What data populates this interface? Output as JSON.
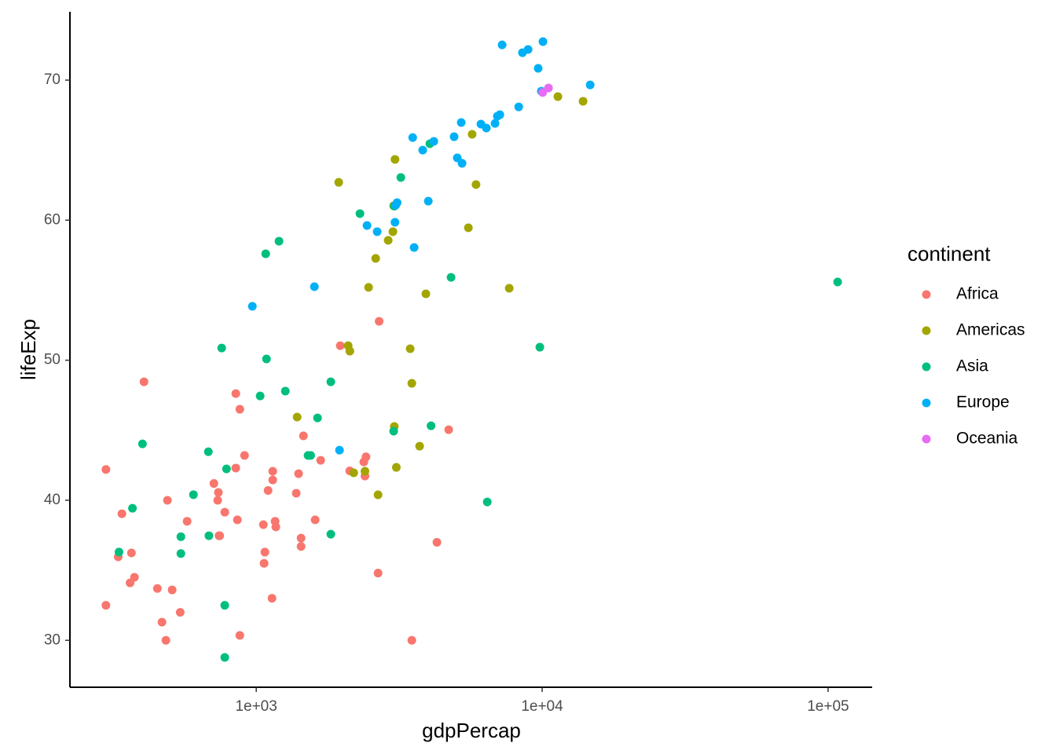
{
  "chart_data": {
    "type": "scatter",
    "x_label": "gdpPercap",
    "y_label": "lifeExp",
    "legend_title": "continent",
    "xlog": true,
    "xlim": [
      223,
      142600
    ],
    "ylim": [
      26.65,
      74.88
    ],
    "xticks": [
      {
        "value": 1000,
        "label": "1e+03"
      },
      {
        "value": 10000,
        "label": "1e+04"
      },
      {
        "value": 100000,
        "label": "1e+05"
      }
    ],
    "yticks": [
      30,
      40,
      50,
      60,
      70
    ],
    "series": [
      {
        "name": "Africa",
        "color": "#F8766D",
        "x": [
          298,
          298,
          329,
          339,
          366,
          362,
          375,
          405,
          451,
          468,
          483,
          489,
          508,
          542,
          573,
          711,
          733,
          737,
          741,
          745,
          776,
          848,
          848,
          859,
          876,
          876,
          910,
          1059,
          1072,
          1065,
          1100,
          1135,
          1142,
          1142,
          1164,
          1171,
          1380,
          1406,
          1435,
          1435,
          1462,
          1607,
          1680,
          1967,
          2123,
          2378,
          2400,
          2420,
          2667,
          2690,
          3500,
          4285,
          4710
        ],
        "values": [
          42.2,
          32.5,
          35.96,
          39.04,
          36.24,
          34.1,
          34.5,
          48.46,
          33.7,
          31.3,
          30.0,
          40.0,
          33.6,
          32.0,
          38.5,
          41.2,
          40.0,
          40.56,
          37.47,
          37.47,
          39.15,
          47.62,
          42.3,
          38.6,
          46.5,
          30.35,
          43.2,
          38.26,
          36.3,
          35.5,
          40.7,
          33.0,
          42.07,
          41.45,
          38.5,
          38.1,
          40.5,
          41.9,
          37.3,
          36.7,
          44.6,
          38.6,
          42.85,
          51.04,
          42.1,
          42.74,
          41.73,
          43.1,
          34.8,
          52.78,
          30.0,
          37.0,
          45.04
        ]
      },
      {
        "name": "Americas",
        "color": "#A3A500",
        "x": [
          1943,
          2096,
          2125,
          2192,
          2400,
          2471,
          2616,
          2667,
          2894,
          3006,
          3024,
          3040,
          3057,
          3090,
          3455,
          3500,
          3727,
          3920,
          1390,
          5520,
          5690,
          5870,
          7670,
          11350,
          13900
        ],
        "values": [
          62.7,
          51.04,
          50.65,
          41.96,
          42.07,
          55.2,
          57.27,
          40.39,
          58.56,
          59.18,
          61.03,
          45.27,
          64.34,
          42.35,
          50.82,
          48.35,
          43.86,
          54.74,
          45.94,
          59.46,
          66.13,
          62.54,
          55.14,
          68.82,
          68.49
        ]
      },
      {
        "name": "Asia",
        "color": "#00BF7D",
        "x": [
          331,
          369,
          400,
          545,
          545,
          603,
          680,
          683,
          757,
          776,
          776,
          787,
          1032,
          1079,
          1086,
          1201,
          1264,
          1518,
          1550,
          1638,
          1823,
          1823,
          2305,
          3024,
          3040,
          3204,
          4047,
          4086,
          4800,
          6427,
          9814,
          108000
        ],
        "values": [
          36.3,
          39.43,
          44.03,
          37.4,
          36.2,
          40.4,
          43.47,
          37.47,
          50.87,
          32.5,
          28.78,
          42.24,
          47.45,
          57.6,
          50.09,
          58.5,
          47.79,
          43.2,
          43.2,
          45.88,
          48.46,
          37.58,
          60.47,
          44.93,
          61.0,
          63.05,
          65.46,
          45.32,
          55.92,
          39.88,
          50.93,
          55.59
        ]
      },
      {
        "name": "Europe",
        "color": "#00B0F6",
        "x": [
          969,
          1597,
          1955,
          2440,
          2648,
          3057,
          3075,
          3110,
          3566,
          3525,
          3822,
          3997,
          4178,
          4920,
          5047,
          5212,
          5245,
          6106,
          6380,
          6843,
          6970,
          7112,
          7244,
          8279,
          8531,
          8929,
          9683,
          9931,
          10063,
          14720
        ],
        "values": [
          53.85,
          55.25,
          43.58,
          59.62,
          59.18,
          59.85,
          61.08,
          61.25,
          58.05,
          65.9,
          65.0,
          61.36,
          65.63,
          65.96,
          64.45,
          66.97,
          64.06,
          66.86,
          66.58,
          66.91,
          67.42,
          67.53,
          72.52,
          68.09,
          71.96,
          72.19,
          70.84,
          69.21,
          72.75,
          69.66
        ]
      },
      {
        "name": "Oceania",
        "color": "#E76BF3",
        "x": [
          10040,
          10520
        ],
        "values": [
          69.12,
          69.44
        ]
      }
    ]
  }
}
